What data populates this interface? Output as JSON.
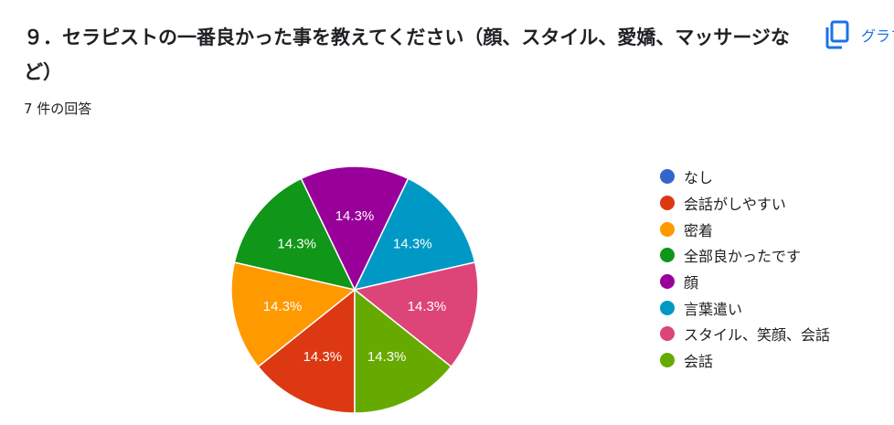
{
  "question": {
    "title": "９．セラピストの一番良かった事を教えてください（顔、スタイル、愛嬌、マッサージなど）",
    "response_count": "7 件の回答"
  },
  "toolbar": {
    "copy_label": "グラフをコピー",
    "copy_icon": "copy-icon"
  },
  "chart_data": {
    "type": "pie",
    "categories": [
      "なし",
      "会話がしやすい",
      "密着",
      "全部良かったです",
      "顔",
      "言葉遣い",
      "スタイル、笑顔、会話",
      "会話"
    ],
    "values": [
      0,
      1,
      1,
      1,
      1,
      1,
      1,
      1
    ],
    "labels": [
      "",
      "14.3%",
      "14.3%",
      "14.3%",
      "14.3%",
      "14.3%",
      "14.3%",
      "14.3%"
    ],
    "colors": [
      "#3366cc",
      "#dc3912",
      "#ff9900",
      "#109618",
      "#990099",
      "#0099c6",
      "#dd4477",
      "#66aa00"
    ],
    "legend_position": "right",
    "start_angle_deg": 90,
    "direction": "clockwise"
  }
}
